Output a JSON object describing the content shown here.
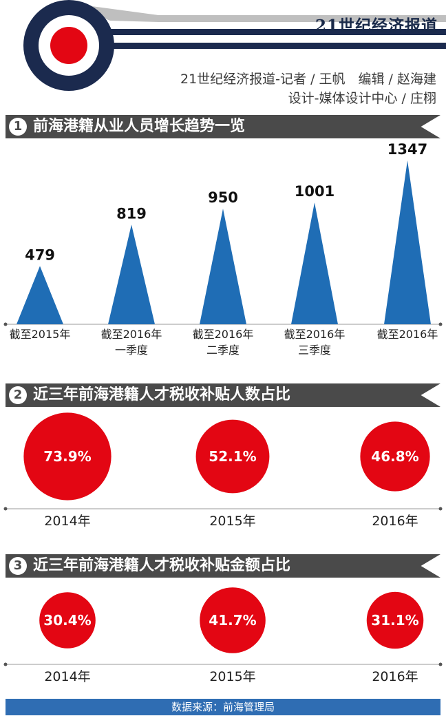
{
  "header": {
    "brand": "21世纪经济报道",
    "credit_line1": "21世纪经济报道-记者 / 王帆　编辑 / 赵海建",
    "credit_line2": "设计-媒体设计中心 / 庄栩"
  },
  "sections": [
    {
      "num": "1",
      "title": "前海港籍从业人员增长趋势一览"
    },
    {
      "num": "2",
      "title": "近三年前海港籍人才税收补贴人数占比"
    },
    {
      "num": "3",
      "title": "近三年前海港籍人才税收补贴金额占比"
    }
  ],
  "footer": {
    "source": "数据来源：前海管理局"
  },
  "colors": {
    "blue": "#1f6db5",
    "red": "#e30613",
    "dark": "#4a4a4a",
    "footer": "#2f6db3"
  },
  "chart_data": [
    {
      "type": "bar",
      "mark": "triangle",
      "categories": [
        [
          "截至2015年"
        ],
        [
          "截至2016年",
          "一季度"
        ],
        [
          "截至2016年",
          "二季度"
        ],
        [
          "截至2016年",
          "三季度"
        ],
        [
          "截至2016年"
        ]
      ],
      "values": [
        479,
        819,
        950,
        1001,
        1347
      ],
      "value_labels": [
        "479",
        "819",
        "950",
        "1001",
        "1347"
      ]
    },
    {
      "type": "bubble",
      "categories": [
        "2014年",
        "2015年",
        "2016年"
      ],
      "values": [
        73.9,
        52.1,
        46.8
      ],
      "value_labels": [
        "73.9%",
        "52.1%",
        "46.8%"
      ]
    },
    {
      "type": "bubble",
      "categories": [
        "2014年",
        "2015年",
        "2016年"
      ],
      "values": [
        30.4,
        41.7,
        31.1
      ],
      "value_labels": [
        "30.4%",
        "41.7%",
        "31.1%"
      ]
    }
  ]
}
